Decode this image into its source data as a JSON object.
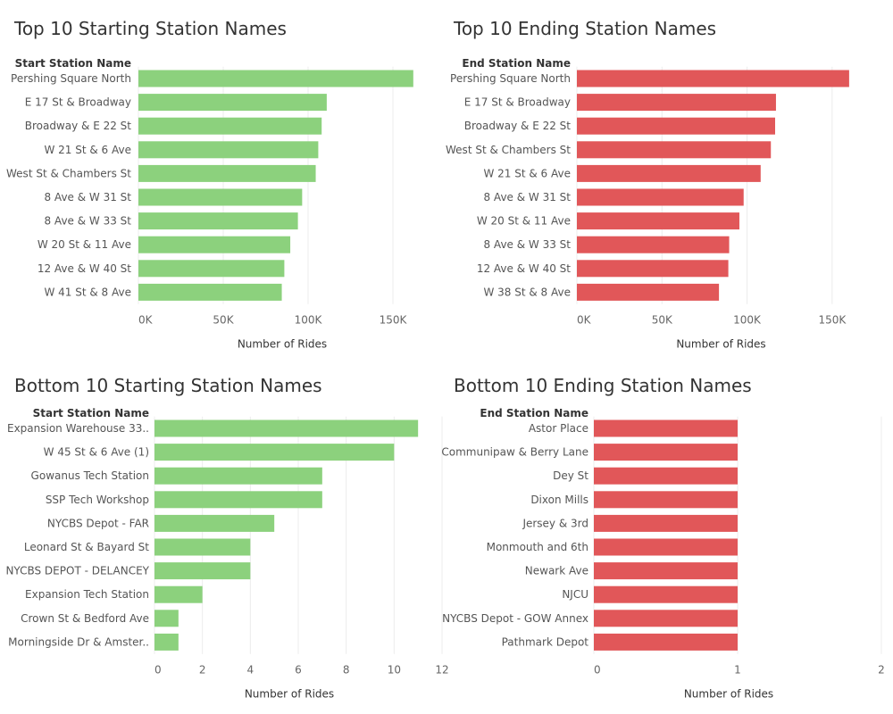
{
  "chart_data": [
    {
      "type": "bar",
      "orientation": "horizontal",
      "title": "Top 10 Starting Station Names",
      "row_header": "Start Station Name",
      "xlabel": "Number of Rides",
      "categories": [
        "Pershing Square North",
        "E 17 St & Broadway",
        "Broadway & E 22 St",
        "W 21 St & 6 Ave",
        "West St & Chambers St",
        "8 Ave & W 31 St",
        "8 Ave & W 33 St",
        "W 20 St & 11 Ave",
        "12 Ave & W 40 St",
        "W 41 St & 8 Ave"
      ],
      "values": [
        162000,
        111000,
        108000,
        106000,
        104500,
        96500,
        94000,
        89500,
        86000,
        84500
      ],
      "xlim": [
        0,
        180000
      ],
      "ticks": [
        0,
        50000,
        100000,
        150000
      ],
      "tick_labels": [
        "0K",
        "50K",
        "100K",
        "150K"
      ],
      "color": "#8cd17d",
      "grid": true
    },
    {
      "type": "bar",
      "orientation": "horizontal",
      "title": "Top 10 Ending Station Names",
      "row_header": "End Station Name",
      "xlabel": "Number of Rides",
      "categories": [
        "Pershing Square North",
        "E 17 St & Broadway",
        "Broadway & E 22 St",
        "West St & Chambers St",
        "W 21 St & 6 Ave",
        "8 Ave & W 31 St",
        "W 20 St & 11 Ave",
        "8 Ave & W 33 St",
        "12 Ave & W 40 St",
        "W 38 St & 8 Ave"
      ],
      "values": [
        160000,
        117000,
        116500,
        114000,
        108000,
        98000,
        95500,
        89500,
        89000,
        83500
      ],
      "xlim": [
        0,
        180000
      ],
      "ticks": [
        0,
        50000,
        100000,
        150000
      ],
      "tick_labels": [
        "0K",
        "50K",
        "100K",
        "150K"
      ],
      "color": "#e15759",
      "grid": true
    },
    {
      "type": "bar",
      "orientation": "horizontal",
      "title": "Bottom 10 Starting Station Names",
      "row_header": "Start Station Name",
      "xlabel": "Number of Rides",
      "categories": [
        "Expansion Warehouse 33..",
        "W 45 St & 6 Ave (1)",
        "Gowanus Tech Station",
        "SSP Tech Workshop",
        "NYCBS Depot - FAR",
        "Leonard St & Bayard St",
        "NYCBS DEPOT - DELANCEY",
        "Expansion Tech Station",
        "Crown St & Bedford Ave",
        "Morningside Dr & Amster.."
      ],
      "values": [
        11,
        10,
        7,
        7,
        5,
        4,
        4,
        2,
        1,
        1
      ],
      "xlim": [
        0,
        12
      ],
      "ticks": [
        0,
        2,
        4,
        6,
        8,
        10,
        12
      ],
      "tick_labels": [
        "0",
        "2",
        "4",
        "6",
        "8",
        "10",
        "12"
      ],
      "color": "#8cd17d",
      "grid": true
    },
    {
      "type": "bar",
      "orientation": "horizontal",
      "title": "Bottom 10 Ending Station Names",
      "row_header": "End Station Name",
      "xlabel": "Number of Rides",
      "categories": [
        "Astor Place",
        "Communipaw & Berry Lane",
        "Dey St",
        "Dixon Mills",
        "Jersey & 3rd",
        "Monmouth and 6th",
        "Newark Ave",
        "NJCU",
        "NYCBS Depot - GOW Annex",
        "Pathmark Depot"
      ],
      "values": [
        1,
        1,
        1,
        1,
        1,
        1,
        1,
        1,
        1,
        1
      ],
      "xlim": [
        0,
        2
      ],
      "ticks": [
        0,
        1,
        2
      ],
      "tick_labels": [
        "0",
        "1",
        "2"
      ],
      "color": "#e15759",
      "grid": true
    }
  ]
}
